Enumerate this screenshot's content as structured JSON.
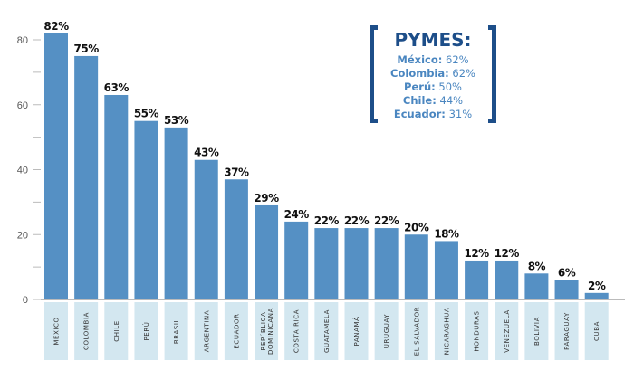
{
  "chart_data": {
    "type": "bar",
    "title": "",
    "xlabel": "",
    "ylabel": "",
    "ylim": [
      0,
      80
    ],
    "yticks": [
      0,
      20,
      40,
      60,
      80
    ],
    "categories": [
      "MÉXICO",
      "COLOMBIA",
      "CHILE",
      "PERÚ",
      "BRASIL",
      "ARGENTINA",
      "ECUADOR",
      "REP´BLICA DOMINICANA",
      "COSTA RICA",
      "GUATAMELA",
      "PANAMÁ",
      "URUGUAY",
      "EL SALVADOR",
      "NICARAGHUA",
      "HONDURAS",
      "VENEZUELA",
      "BOLIVIA",
      "PARAGUAY",
      "CUBA"
    ],
    "values": [
      82,
      75,
      63,
      55,
      53,
      43,
      37,
      29,
      24,
      22,
      22,
      22,
      20,
      18,
      12,
      12,
      8,
      6,
      2
    ],
    "data_labels": [
      "82%",
      "75%",
      "63%",
      "55%",
      "53%",
      "43%",
      "37%",
      "29%",
      "24%",
      "22%",
      "22%",
      "22%",
      "20%",
      "18%",
      "12%",
      "12%",
      "8%",
      "6%",
      "2%"
    ],
    "colors": {
      "bar": "#5590c4",
      "category_box": "#d3e7f0",
      "bracket": "#1d4e89",
      "callout_text": "#4a86c0"
    }
  },
  "callout": {
    "title": "PYMES:",
    "items": [
      {
        "label": "México:",
        "value": "62%"
      },
      {
        "label": "Colombia:",
        "value": "62%"
      },
      {
        "label": "Perú:",
        "value": "50%"
      },
      {
        "label": "Chile:",
        "value": "44%"
      },
      {
        "label": "Ecuador:",
        "value": "31%"
      }
    ]
  }
}
